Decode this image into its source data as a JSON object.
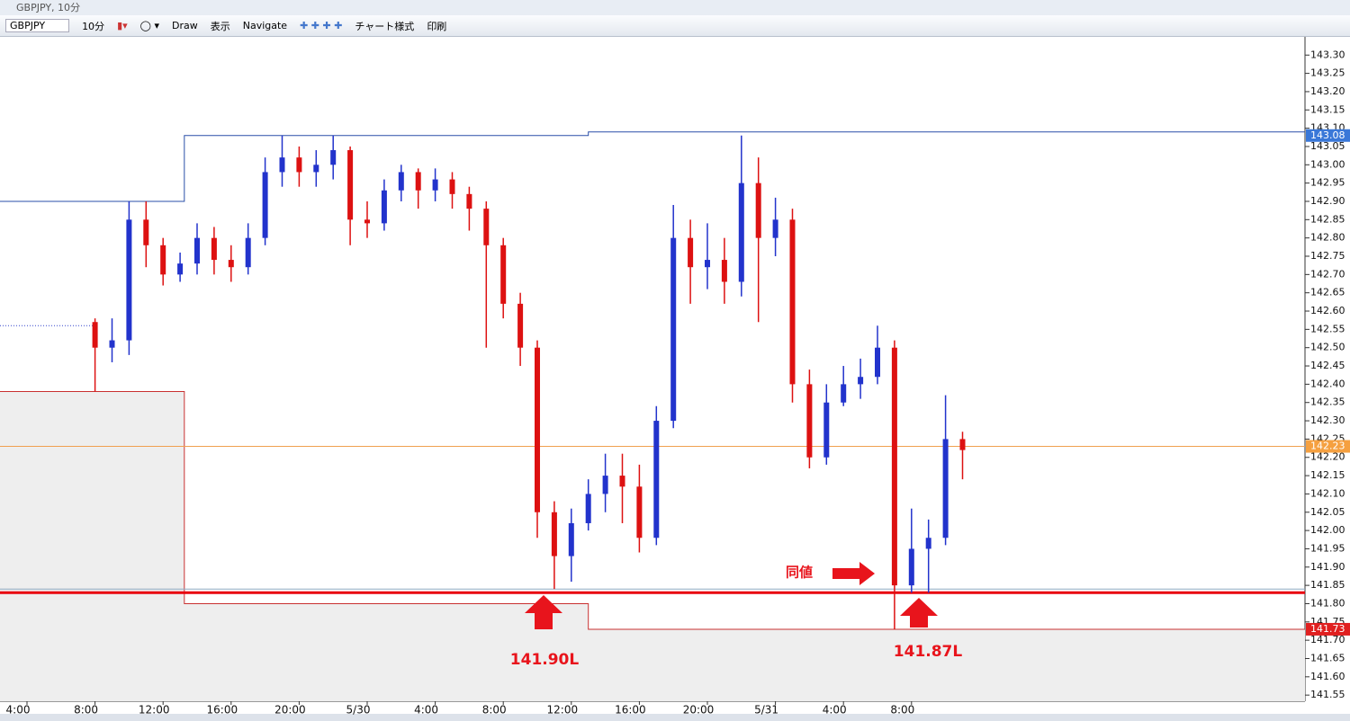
{
  "window": {
    "title": "GBPJPY, 10分"
  },
  "toolbar": {
    "symbol": "GBPJPY",
    "timeframe": "10分",
    "items": [
      "Draw",
      "表示",
      "Navigate",
      "チャート様式",
      "印刷"
    ]
  },
  "chart": {
    "type": "candlestick",
    "up_color": "#2233cc",
    "down_color": "#dd1111",
    "x": [
      4,
      5,
      6,
      7,
      8,
      9,
      10,
      11,
      12,
      13,
      14,
      15,
      16,
      17,
      18,
      19,
      20,
      21,
      22,
      23,
      24,
      25,
      26,
      27,
      28,
      29,
      30,
      31,
      32,
      33,
      34,
      35,
      36,
      37,
      38,
      39,
      40,
      41,
      42,
      43,
      44,
      45,
      46,
      47,
      48,
      49,
      50,
      51,
      52,
      53,
      54,
      55
    ],
    "open": [
      142.57,
      142.5,
      142.52,
      142.85,
      142.78,
      142.7,
      142.73,
      142.8,
      142.74,
      142.72,
      142.8,
      142.98,
      143.02,
      142.98,
      143.0,
      143.04,
      142.85,
      142.84,
      142.93,
      142.98,
      142.93,
      142.96,
      142.92,
      142.88,
      142.78,
      142.62,
      142.5,
      142.05,
      141.93,
      142.02,
      142.1,
      142.15,
      142.12,
      141.98,
      142.3,
      142.8,
      142.72,
      142.74,
      142.68,
      142.95,
      142.8,
      142.85,
      142.4,
      142.2,
      142.35,
      142.4,
      142.42,
      142.5,
      141.85,
      141.95,
      141.98,
      142.25
    ],
    "high": [
      142.58,
      142.58,
      142.9,
      142.9,
      142.8,
      142.76,
      142.84,
      142.83,
      142.78,
      142.84,
      143.02,
      143.08,
      143.05,
      143.04,
      143.08,
      143.05,
      142.9,
      142.96,
      143.0,
      142.99,
      142.99,
      142.98,
      142.94,
      142.9,
      142.8,
      142.65,
      142.52,
      142.08,
      142.06,
      142.14,
      142.21,
      142.21,
      142.18,
      142.34,
      142.89,
      142.85,
      142.84,
      142.8,
      143.08,
      143.02,
      142.91,
      142.88,
      142.44,
      142.4,
      142.45,
      142.47,
      142.56,
      142.52,
      142.06,
      142.03,
      142.37,
      142.27
    ],
    "low": [
      142.38,
      142.46,
      142.48,
      142.72,
      142.67,
      142.68,
      142.7,
      142.7,
      142.68,
      142.7,
      142.78,
      142.94,
      142.94,
      142.94,
      142.96,
      142.78,
      142.8,
      142.82,
      142.9,
      142.88,
      142.9,
      142.88,
      142.82,
      142.5,
      142.58,
      142.45,
      141.98,
      141.84,
      141.86,
      142.0,
      142.05,
      142.02,
      141.94,
      141.96,
      142.28,
      142.62,
      142.66,
      142.62,
      142.64,
      142.57,
      142.75,
      142.35,
      142.17,
      142.18,
      142.34,
      142.36,
      142.4,
      141.73,
      141.83,
      141.83,
      141.96,
      142.14
    ],
    "close": [
      142.5,
      142.52,
      142.85,
      142.78,
      142.7,
      142.73,
      142.8,
      142.74,
      142.72,
      142.8,
      142.98,
      143.02,
      142.98,
      143.0,
      143.04,
      142.85,
      142.84,
      142.93,
      142.98,
      142.93,
      142.96,
      142.92,
      142.88,
      142.78,
      142.62,
      142.5,
      142.05,
      141.93,
      142.02,
      142.1,
      142.15,
      142.12,
      141.98,
      142.3,
      142.8,
      142.72,
      142.74,
      142.68,
      142.95,
      142.8,
      142.85,
      142.4,
      142.2,
      142.35,
      142.4,
      142.42,
      142.5,
      141.85,
      141.95,
      141.98,
      142.25,
      142.22
    ],
    "prev_close": 142.56,
    "range_high": {
      "color": "#2a4fa8",
      "breaks": [
        9.25,
        33
      ],
      "values": [
        142.9,
        143.08,
        143.09
      ]
    },
    "range_low": {
      "color": "#c83030",
      "breaks": [
        9.25,
        33
      ],
      "values": [
        142.38,
        141.8,
        141.73
      ]
    },
    "hlines": [
      {
        "value": 141.84,
        "color": "#8fa8c0",
        "width": 1
      },
      {
        "value": 141.83,
        "color": "#e8000e",
        "width": 3
      },
      {
        "value": 142.23,
        "color": "#f0a050",
        "width": 1
      }
    ],
    "price_badges": [
      {
        "value": 143.08,
        "color": "#3a78d8"
      },
      {
        "value": 142.23,
        "color": "#f5a040"
      },
      {
        "value": 141.73,
        "color": "#e02020"
      }
    ],
    "xlim": [
      -0.5,
      75.2
    ],
    "ylim": [
      141.5332,
      143.3498
    ],
    "xticks": [
      {
        "value": 0,
        "label": "4:00"
      },
      {
        "value": 4,
        "label": "8:00"
      },
      {
        "value": 8,
        "label": "12:00"
      },
      {
        "value": 12,
        "label": "16:00"
      },
      {
        "value": 16,
        "label": "20:00"
      },
      {
        "value": 20,
        "label": "5/30"
      },
      {
        "value": 24,
        "label": "4:00"
      },
      {
        "value": 28,
        "label": "8:00"
      },
      {
        "value": 32,
        "label": "12:00"
      },
      {
        "value": 36,
        "label": "16:00"
      },
      {
        "value": 40,
        "label": "20:00"
      },
      {
        "value": 44,
        "label": "5/31"
      },
      {
        "value": 48,
        "label": "4:00"
      },
      {
        "value": 52,
        "label": "8:00"
      }
    ],
    "yticks": [
      {
        "value": 143.3,
        "label": "143.30"
      },
      143.25,
      {
        "value": 143.2,
        "label": "143.20"
      },
      143.15,
      {
        "value": 143.1,
        "label": "143.10"
      },
      143.05,
      {
        "value": 143,
        "label": "143.00"
      },
      142.95,
      {
        "value": 142.9,
        "label": "142.90"
      },
      142.85,
      {
        "value": 142.8,
        "label": "142.80"
      },
      142.75,
      {
        "value": 142.7,
        "label": "142.70"
      },
      142.65,
      {
        "value": 142.6,
        "label": "142.60"
      },
      142.55,
      {
        "value": 142.5,
        "label": "142.50"
      },
      142.45,
      {
        "value": 142.4,
        "label": "142.40"
      },
      142.35,
      {
        "value": 142.3,
        "label": "142.30"
      },
      142.25,
      {
        "value": 142.2,
        "label": "142.20"
      },
      142.15,
      {
        "value": 142.1,
        "label": "142.10"
      },
      142.05,
      {
        "value": 142,
        "label": "142.00"
      },
      141.95,
      {
        "value": 141.9,
        "label": "141.90"
      },
      141.85,
      {
        "value": 141.8,
        "label": "141.80"
      },
      141.75,
      {
        "value": 141.7,
        "label": "141.70"
      },
      141.65,
      {
        "value": 141.6,
        "label": "141.60"
      },
      141.55
    ],
    "annotations": [
      "141.90L",
      "141.87L",
      "同値"
    ]
  }
}
